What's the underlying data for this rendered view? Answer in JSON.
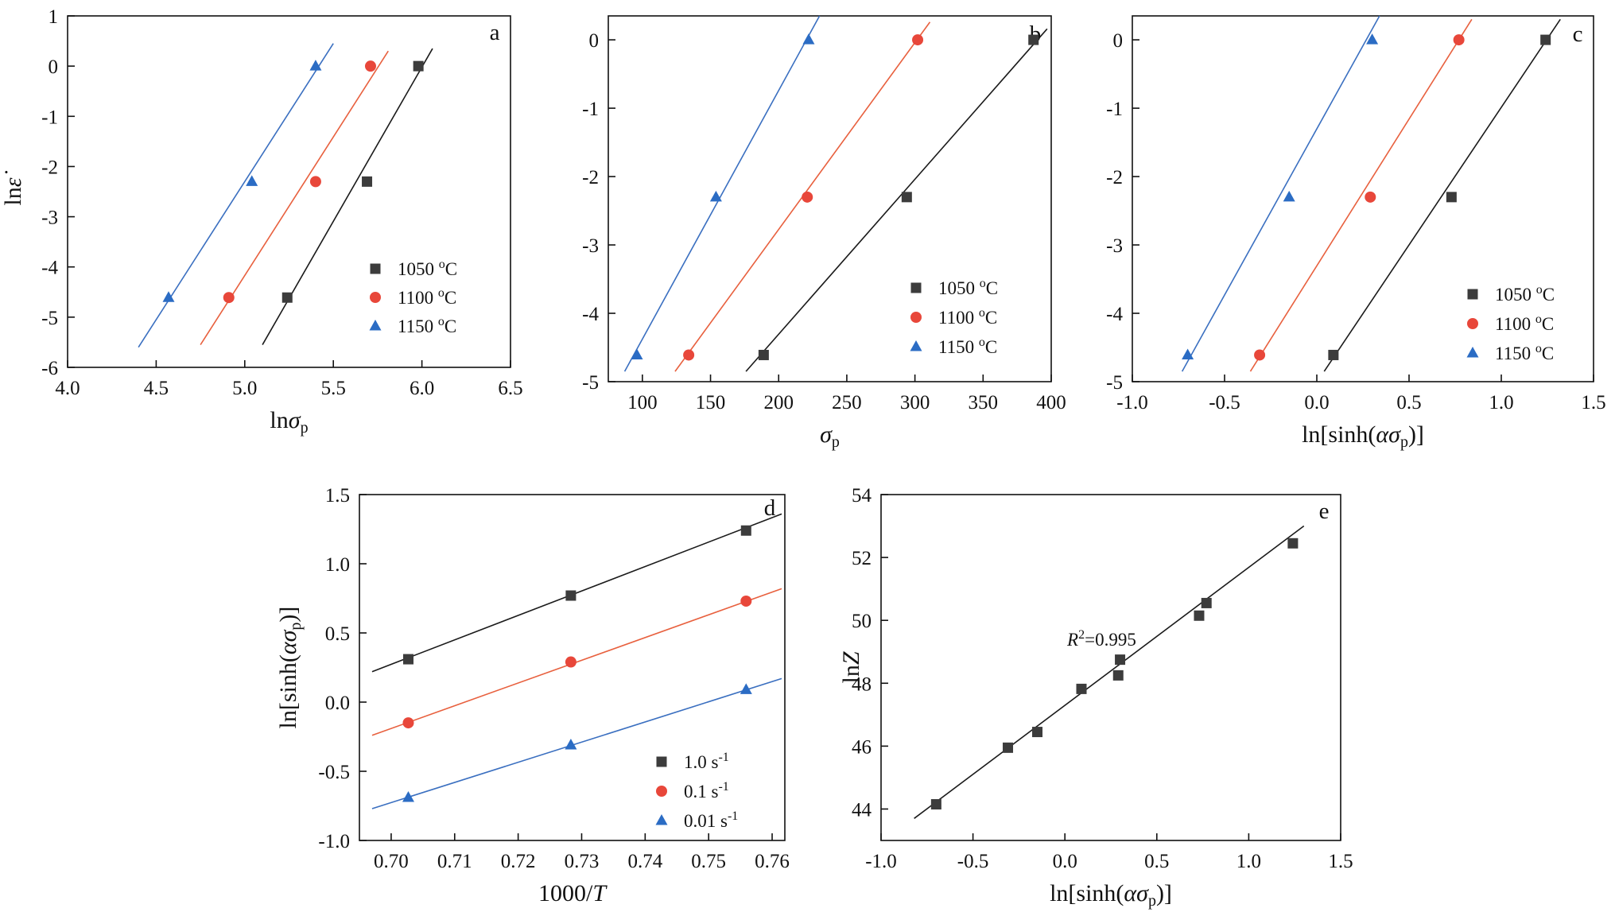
{
  "colors": {
    "black": "#3c3c3c",
    "red": "#e8473a",
    "blue": "#2b6cc4",
    "line_black": "#1a1a1a",
    "line_red": "#e8603e",
    "line_blue": "#3a6fc0"
  },
  "chart_data": [
    {
      "id": "a",
      "letter": "a",
      "type": "scatter",
      "xlabel": "lnσp",
      "ylabel": "lnε̇",
      "xlim": [
        4.0,
        6.5
      ],
      "ylim": [
        -6,
        1
      ],
      "xticks": [
        "4.0",
        "4.5",
        "5.0",
        "5.5",
        "6.0",
        "6.5"
      ],
      "xtick_values": [
        4.0,
        4.5,
        5.0,
        5.5,
        6.0,
        6.5
      ],
      "yticks": [
        "1",
        "0",
        "-1",
        "-2",
        "-3",
        "-4",
        "-5",
        "-6"
      ],
      "ytick_values": [
        1,
        0,
        -1,
        -2,
        -3,
        -4,
        -5,
        -6
      ],
      "legend_position": "bottom-right",
      "series": [
        {
          "name": "1050 ºC",
          "color": "black",
          "marker": "square",
          "x": [
            5.24,
            5.69,
            5.98
          ],
          "y": [
            -4.61,
            -2.3,
            0.0
          ],
          "fit": {
            "x": [
              5.1,
              6.06
            ],
            "y": [
              -5.55,
              0.35
            ]
          }
        },
        {
          "name": "1100 ºC",
          "color": "red",
          "marker": "circle",
          "x": [
            4.91,
            5.4,
            5.71
          ],
          "y": [
            -4.61,
            -2.3,
            0.0
          ],
          "fit": {
            "x": [
              4.75,
              5.81
            ],
            "y": [
              -5.55,
              0.3
            ]
          }
        },
        {
          "name": "1150 ºC",
          "color": "blue",
          "marker": "triangle",
          "x": [
            4.57,
            5.04,
            5.4
          ],
          "y": [
            -4.61,
            -2.3,
            0.0
          ],
          "fit": {
            "x": [
              4.4,
              5.5
            ],
            "y": [
              -5.6,
              0.45
            ]
          }
        }
      ]
    },
    {
      "id": "b",
      "letter": "b",
      "type": "scatter",
      "xlabel": "σp",
      "ylabel": "",
      "xlim": [
        75,
        400
      ],
      "ylim": [
        -5,
        0.35
      ],
      "xticks": [
        "100",
        "150",
        "200",
        "250",
        "300",
        "350",
        "400"
      ],
      "xtick_values": [
        100,
        150,
        200,
        250,
        300,
        350,
        400
      ],
      "yticks": [
        "0",
        "-1",
        "-2",
        "-3",
        "-4",
        "-5"
      ],
      "ytick_values": [
        0,
        -1,
        -2,
        -3,
        -4,
        -5
      ],
      "legend_position": "bottom-right",
      "series": [
        {
          "name": "1050 ºC",
          "color": "black",
          "marker": "square",
          "x": [
            189,
            294,
            387
          ],
          "y": [
            -4.61,
            -2.3,
            0.0
          ],
          "fit": {
            "x": [
              176,
              397
            ],
            "y": [
              -4.85,
              0.16
            ]
          }
        },
        {
          "name": "1100 ºC",
          "color": "red",
          "marker": "circle",
          "x": [
            134,
            221,
            302
          ],
          "y": [
            -4.61,
            -2.3,
            0.0
          ],
          "fit": {
            "x": [
              124,
              311
            ],
            "y": [
              -4.85,
              0.26
            ]
          }
        },
        {
          "name": "1150 ºC",
          "color": "blue",
          "marker": "triangle",
          "x": [
            96,
            154,
            222
          ],
          "y": [
            -4.61,
            -2.3,
            0.0
          ],
          "fit": {
            "x": [
              87,
              230
            ],
            "y": [
              -4.85,
              0.35
            ]
          }
        }
      ]
    },
    {
      "id": "c",
      "letter": "c",
      "type": "scatter",
      "xlabel": "ln[sinh(ασp)]",
      "ylabel": "",
      "xlim": [
        -1.0,
        1.5
      ],
      "ylim": [
        -5,
        0.35
      ],
      "xticks": [
        "-1.0",
        "-0.5",
        "0.0",
        "0.5",
        "1.0",
        "1.5"
      ],
      "xtick_values": [
        -1.0,
        -0.5,
        0.0,
        0.5,
        1.0,
        1.5
      ],
      "yticks": [
        "0",
        "-1",
        "-2",
        "-3",
        "-4",
        "-5"
      ],
      "ytick_values": [
        0,
        -1,
        -2,
        -3,
        -4,
        -5
      ],
      "legend_position": "bottom-right",
      "series": [
        {
          "name": "1050 ºC",
          "color": "black",
          "marker": "square",
          "x": [
            0.09,
            0.73,
            1.24
          ],
          "y": [
            -4.61,
            -2.3,
            0.0
          ],
          "fit": {
            "x": [
              0.04,
              1.32
            ],
            "y": [
              -4.85,
              0.3
            ]
          }
        },
        {
          "name": "1100 ºC",
          "color": "red",
          "marker": "circle",
          "x": [
            -0.31,
            0.29,
            0.77
          ],
          "y": [
            -4.61,
            -2.3,
            0.0
          ],
          "fit": {
            "x": [
              -0.36,
              0.84
            ],
            "y": [
              -4.85,
              0.3
            ]
          }
        },
        {
          "name": "1150 ºC",
          "color": "blue",
          "marker": "triangle",
          "x": [
            -0.7,
            -0.15,
            0.3
          ],
          "y": [
            -4.61,
            -2.3,
            0.0
          ],
          "fit": {
            "x": [
              -0.73,
              0.34
            ],
            "y": [
              -4.85,
              0.35
            ]
          }
        }
      ]
    },
    {
      "id": "d",
      "letter": "d",
      "type": "scatter",
      "xlabel": "1000/T",
      "ylabel": "ln[sinh(ασp)]",
      "xlim": [
        0.695,
        0.762
      ],
      "ylim": [
        -1.0,
        1.5
      ],
      "xticks": [
        "0.70",
        "0.71",
        "0.72",
        "0.73",
        "0.74",
        "0.75",
        "0.76"
      ],
      "xtick_values": [
        0.7,
        0.71,
        0.72,
        0.73,
        0.74,
        0.75,
        0.76
      ],
      "yticks": [
        "1.5",
        "1.0",
        "0.5",
        "0.0",
        "-0.5",
        "-1.0"
      ],
      "ytick_values": [
        1.5,
        1.0,
        0.5,
        0.0,
        -0.5,
        -1.0
      ],
      "legend_position": "bottom-right",
      "series": [
        {
          "name": "1.0 s-1",
          "color": "black",
          "marker": "square",
          "x": [
            0.7027,
            0.7283,
            0.7559
          ],
          "y": [
            0.31,
            0.77,
            1.24
          ],
          "fit": {
            "x": [
              0.697,
              0.7615
            ],
            "y": [
              0.22,
              1.36
            ]
          }
        },
        {
          "name": "0.1 s-1",
          "color": "red",
          "marker": "circle",
          "x": [
            0.7027,
            0.7283,
            0.7559
          ],
          "y": [
            -0.15,
            0.29,
            0.73
          ],
          "fit": {
            "x": [
              0.697,
              0.7615
            ],
            "y": [
              -0.24,
              0.82
            ]
          }
        },
        {
          "name": "0.01 s-1",
          "color": "blue",
          "marker": "triangle",
          "x": [
            0.7027,
            0.7283,
            0.7559
          ],
          "y": [
            -0.69,
            -0.31,
            0.09
          ],
          "fit": {
            "x": [
              0.697,
              0.7615
            ],
            "y": [
              -0.77,
              0.17
            ]
          }
        }
      ]
    },
    {
      "id": "e",
      "letter": "e",
      "type": "scatter",
      "xlabel": "ln[sinh(ασp)]",
      "ylabel": "lnZ",
      "xlim": [
        -1.0,
        1.5
      ],
      "ylim": [
        43,
        54
      ],
      "xticks": [
        "-1.0",
        "-0.5",
        "0.0",
        "0.5",
        "1.0",
        "1.5"
      ],
      "xtick_values": [
        -1.0,
        -0.5,
        0.0,
        0.5,
        1.0,
        1.5
      ],
      "yticks": [
        "54",
        "52",
        "50",
        "48",
        "46",
        "44"
      ],
      "ytick_values": [
        54,
        52,
        50,
        48,
        46,
        44
      ],
      "annotation": {
        "text": "R2=0.995",
        "x": 0.2,
        "y": 49.2
      },
      "series": [
        {
          "name": "",
          "color": "black",
          "marker": "square",
          "x": [
            -0.7,
            -0.31,
            -0.15,
            0.09,
            0.29,
            0.3,
            0.73,
            0.77,
            1.24
          ],
          "y": [
            44.15,
            45.95,
            46.45,
            47.82,
            48.25,
            48.75,
            50.15,
            50.55,
            52.45
          ],
          "fit": {
            "x": [
              -0.82,
              1.3
            ],
            "y": [
              43.7,
              53.0
            ]
          }
        }
      ]
    }
  ]
}
